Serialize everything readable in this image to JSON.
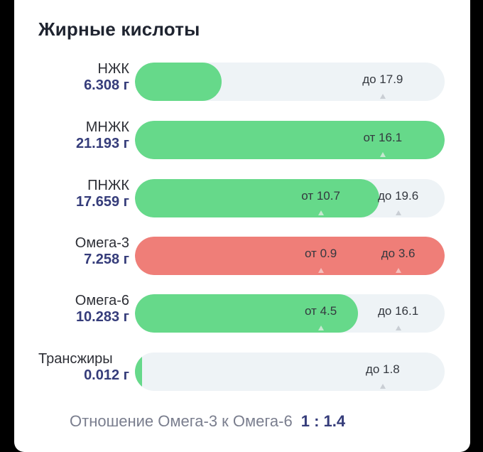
{
  "section": {
    "title": "Жирные кислоты"
  },
  "colors": {
    "ok_fill": "#66d98a",
    "over_fill": "#ef7e78",
    "track": "#eef3f6",
    "amount_text": "#353c7a"
  },
  "rows": [
    {
      "label": "НЖК",
      "amount": "6.308 г",
      "status": "ok",
      "fill_fraction": 0.28,
      "markers": [
        {
          "text": "до 17.9",
          "fraction": 0.8
        }
      ]
    },
    {
      "label": "МНЖК",
      "amount": "21.193 г",
      "status": "ok",
      "fill_fraction": 1.0,
      "markers": [
        {
          "text": "от 16.1",
          "fraction": 0.8
        }
      ]
    },
    {
      "label": "ПНЖК",
      "amount": "17.659 г",
      "status": "ok",
      "fill_fraction": 0.79,
      "markers": [
        {
          "text": "от 10.7",
          "fraction": 0.6
        },
        {
          "text": "до 19.6",
          "fraction": 0.85
        }
      ]
    },
    {
      "label": "Омега-3",
      "amount": "7.258 г",
      "status": "over",
      "fill_fraction": 1.0,
      "markers": [
        {
          "text": "от 0.9",
          "fraction": 0.6
        },
        {
          "text": "до 3.6",
          "fraction": 0.85
        }
      ]
    },
    {
      "label": "Омега-6",
      "amount": "10.283 г",
      "status": "ok",
      "fill_fraction": 0.72,
      "markers": [
        {
          "text": "от 4.5",
          "fraction": 0.6
        },
        {
          "text": "до 16.1",
          "fraction": 0.85
        }
      ]
    },
    {
      "label": "Трансжиры",
      "amount": "0.012 г",
      "status": "ok",
      "fill_fraction": 0.01,
      "markers": [
        {
          "text": "до 1.8",
          "fraction": 0.8
        }
      ]
    }
  ],
  "ratio": {
    "label": "Отношение Омега-3 к Омега-6",
    "value": "1 : 1.4"
  }
}
